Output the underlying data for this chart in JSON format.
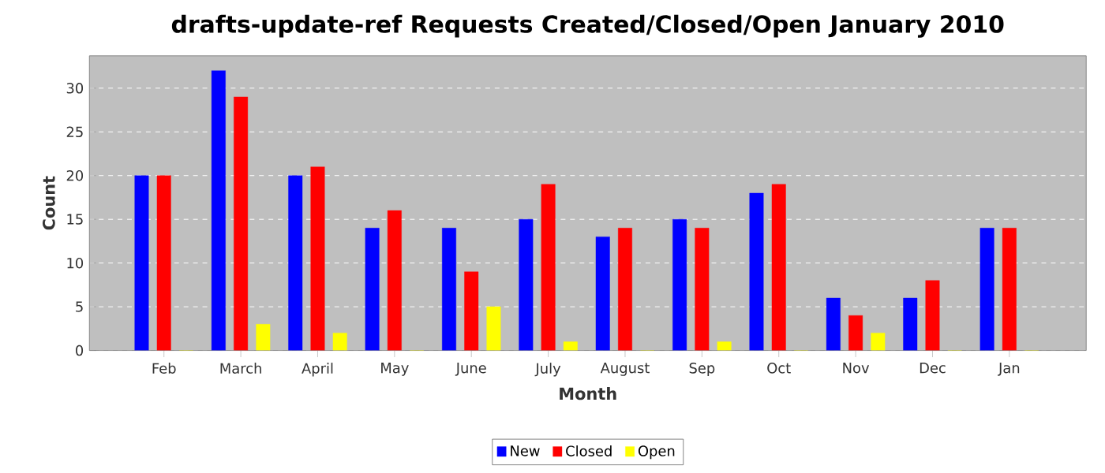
{
  "chart_data": {
    "type": "bar",
    "title": "drafts-update-ref Requests Created/Closed/Open January 2010",
    "xlabel": "Month",
    "ylabel": "Count",
    "categories": [
      "Feb",
      "March",
      "April",
      "May",
      "June",
      "July",
      "August",
      "Sep",
      "Oct",
      "Nov",
      "Dec",
      "Jan"
    ],
    "series": [
      {
        "name": "New",
        "color": "#0000ff",
        "values": [
          20,
          32,
          20,
          14,
          14,
          15,
          13,
          15,
          18,
          6,
          6,
          14
        ]
      },
      {
        "name": "Closed",
        "color": "#ff0000",
        "values": [
          20,
          29,
          21,
          16,
          9,
          19,
          14,
          14,
          19,
          4,
          8,
          14
        ]
      },
      {
        "name": "Open",
        "color": "#ffff00",
        "values": [
          0,
          3,
          2,
          0,
          5,
          1,
          0,
          1,
          0,
          2,
          0,
          0
        ]
      }
    ],
    "ylim": [
      0,
      33.7
    ],
    "yticks": [
      0,
      5,
      10,
      15,
      20,
      25,
      30
    ],
    "grid": "y",
    "legend": "bottom"
  }
}
